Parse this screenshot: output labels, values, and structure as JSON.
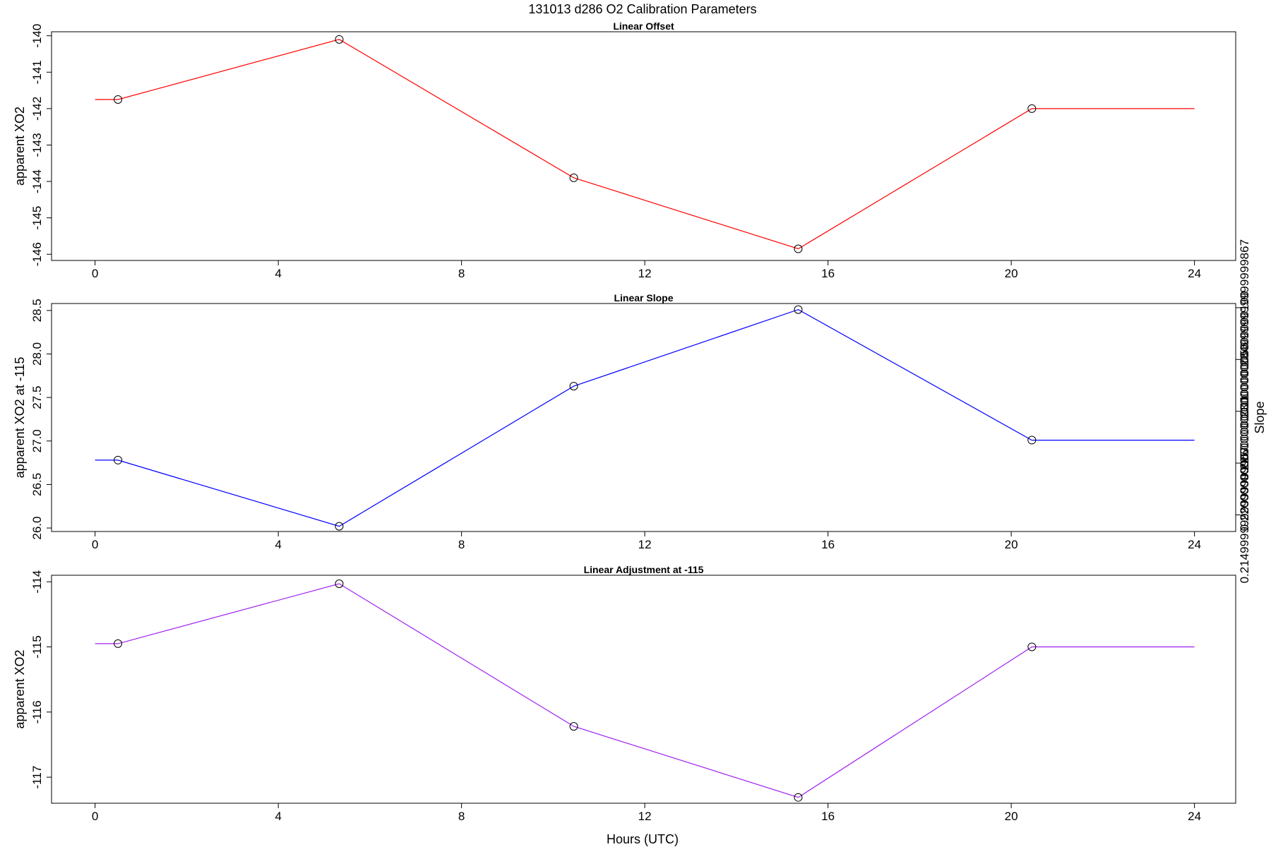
{
  "title": "131013   d286   O2 Calibration Parameters",
  "xlabel": "Hours (UTC)",
  "chart_data": [
    {
      "type": "line",
      "title": "Linear Offset",
      "ylabel": "apparent XO2",
      "color": "#ff0000",
      "x": [
        0,
        0.5,
        5.33,
        10.45,
        15.35,
        20.45,
        24
      ],
      "values": [
        -141.75,
        -141.75,
        -140.1,
        -143.9,
        -145.85,
        -142.0,
        -142.0
      ],
      "markers": [
        1,
        2,
        3,
        4,
        5
      ],
      "xlim": [
        -0.95,
        24.9
      ],
      "ylim": [
        -146.17,
        -139.89
      ],
      "xticks": [
        0,
        4,
        8,
        12,
        16,
        20,
        24
      ],
      "yticks": [
        -146,
        -145,
        -144,
        -143,
        -142,
        -141,
        -140
      ]
    },
    {
      "type": "line",
      "title": "Linear Slope",
      "ylabel": "apparent XO2 at -115",
      "ylabel_right": "Slope",
      "color": "#0000ff",
      "x": [
        0,
        0.5,
        5.33,
        10.45,
        15.35,
        20.45,
        24
      ],
      "values": [
        26.78,
        26.78,
        26.02,
        27.63,
        28.51,
        27.01,
        27.01
      ],
      "markers": [
        1,
        2,
        3,
        4,
        5
      ],
      "xlim": [
        -0.95,
        24.9
      ],
      "ylim": [
        25.96,
        28.58
      ],
      "xticks": [
        0,
        4,
        8,
        12,
        16,
        20,
        24
      ],
      "yticks": [
        26.0,
        26.5,
        27.0,
        27.5,
        28.0,
        28.5
      ],
      "ylim_right": [
        0.2134,
        0.2354
      ],
      "yticks_right": [
        0.215,
        0.22,
        0.225,
        0.23,
        0.235
      ]
    },
    {
      "type": "line",
      "title": "Linear Adjustment at -115",
      "ylabel": "apparent XO2",
      "color": "#a020f0",
      "x": [
        0,
        0.5,
        5.33,
        10.45,
        15.35,
        20.45,
        24
      ],
      "values": [
        -114.95,
        -114.95,
        -114.03,
        -116.22,
        -117.31,
        -115.0,
        -115.0
      ],
      "markers": [
        1,
        2,
        3,
        4,
        5
      ],
      "xlim": [
        -0.95,
        24.9
      ],
      "ylim": [
        -117.4,
        -113.9
      ],
      "xticks": [
        0,
        4,
        8,
        12,
        16,
        20,
        24
      ],
      "yticks": [
        -117.0,
        -116.0,
        -115.0,
        -114.0
      ]
    }
  ]
}
